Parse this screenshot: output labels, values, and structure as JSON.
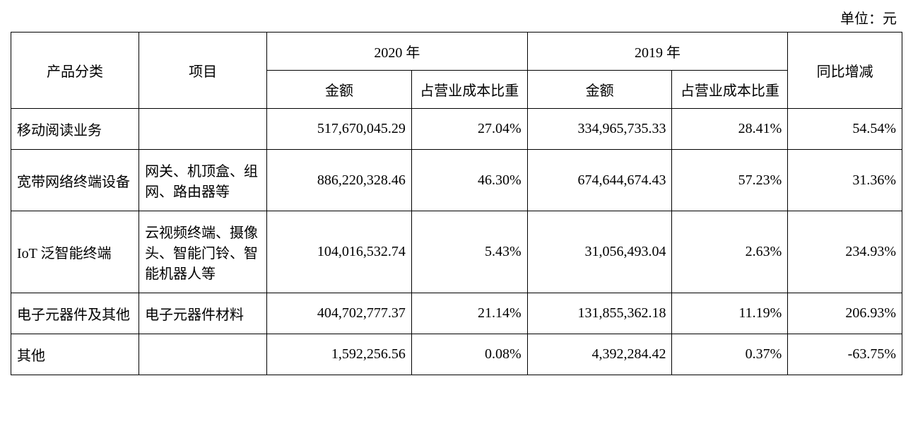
{
  "unit_label": "单位：元",
  "headers": {
    "category": "产品分类",
    "item": "项目",
    "year2020": "2020 年",
    "year2019": "2019 年",
    "amount": "金额",
    "cost_ratio": "占营业成本比重",
    "yoy": "同比增减"
  },
  "rows": [
    {
      "category": "移动阅读业务",
      "item": "",
      "amt2020": "517,670,045.29",
      "pct2020": "27.04%",
      "amt2019": "334,965,735.33",
      "pct2019": "28.41%",
      "yoy": "54.54%"
    },
    {
      "category": "宽带网络终端设备",
      "item": "网关、机顶盒、组网、路由器等",
      "amt2020": "886,220,328.46",
      "pct2020": "46.30%",
      "amt2019": "674,644,674.43",
      "pct2019": "57.23%",
      "yoy": "31.36%"
    },
    {
      "category": "IoT 泛智能终端",
      "item": "云视频终端、摄像头、智能门铃、智能机器人等",
      "amt2020": "104,016,532.74",
      "pct2020": "5.43%",
      "amt2019": "31,056,493.04",
      "pct2019": "2.63%",
      "yoy": "234.93%"
    },
    {
      "category": "电子元器件及其他",
      "item": "电子元器件材料",
      "amt2020": "404,702,777.37",
      "pct2020": "21.14%",
      "amt2019": "131,855,362.18",
      "pct2019": "11.19%",
      "yoy": "206.93%"
    },
    {
      "category": "其他",
      "item": "",
      "amt2020": "1,592,256.56",
      "pct2020": "0.08%",
      "amt2019": "4,392,284.42",
      "pct2019": "0.37%",
      "yoy": "-63.75%"
    }
  ]
}
